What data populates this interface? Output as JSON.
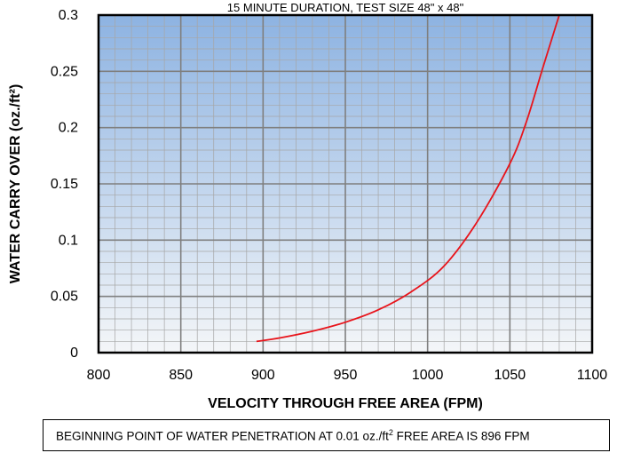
{
  "chart_data": {
    "type": "line",
    "title": "15 MINUTE DURATION, TEST SIZE 48\" x 48\"",
    "xlabel": "VELOCITY THROUGH FREE AREA (FPM)",
    "ylabel": "WATER CARRY OVER (oz./ft²)",
    "xlim": [
      800,
      1100
    ],
    "ylim": [
      0,
      0.3
    ],
    "x_ticks": [
      800,
      850,
      900,
      950,
      1000,
      1050,
      1100
    ],
    "x_tick_labels": [
      "800",
      "850",
      "900",
      "950",
      "1000",
      "1050",
      "1100"
    ],
    "y_ticks": [
      0,
      0.05,
      0.1,
      0.15,
      0.2,
      0.25,
      0.3
    ],
    "y_tick_labels": [
      "0",
      "0.05",
      "0.1",
      "0.15",
      "0.2",
      "0.25",
      "0.3"
    ],
    "grid": true,
    "colors": {
      "line": "#e8141b",
      "plot_bg_top": "#8db3e2",
      "plot_bg_bottom": "#f4f6f8",
      "grid_major": "#7f7f7f",
      "grid_minor": "#a6a6a6"
    },
    "series": [
      {
        "x": [
          896,
          910,
          930,
          950,
          970,
          990,
          1010,
          1030,
          1050,
          1060,
          1070,
          1080
        ],
        "values": [
          0.01,
          0.013,
          0.019,
          0.027,
          0.038,
          0.054,
          0.077,
          0.116,
          0.168,
          0.205,
          0.253,
          0.3
        ]
      }
    ]
  },
  "note": {
    "text_before": "BEGINNING POINT OF WATER PENETRATION AT 0.01 oz./ft",
    "superscript": "2",
    "text_after": " FREE AREA IS 896 FPM"
  }
}
